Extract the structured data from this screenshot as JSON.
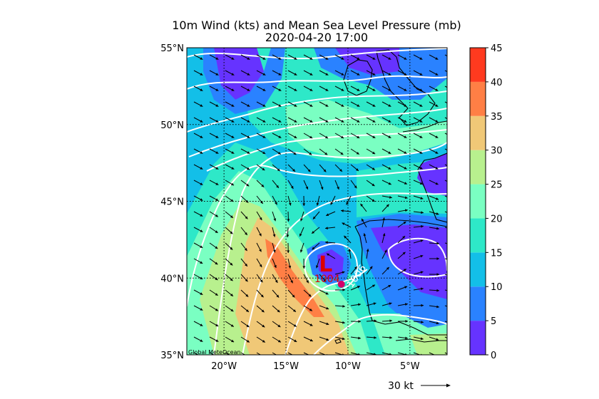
{
  "title": "10m Wind (kts) and Mean Sea Level Pressure (mb)",
  "subtitle": "2020-04-20 17:00",
  "map": {
    "lon_range": [
      -23,
      -2
    ],
    "lat_range": [
      35,
      55
    ],
    "lat_labels": [
      "55°N",
      "50°N",
      "45°N",
      "40°N",
      "35°N"
    ],
    "lat_values": [
      55,
      50,
      45,
      40,
      35
    ],
    "lon_labels": [
      "20°W",
      "15°W",
      "10°W",
      "5°W"
    ],
    "lon_values": [
      -20,
      -15,
      -10,
      -5
    ],
    "credit": "Global MeteOcean",
    "low": {
      "symbol": "L",
      "label": "1004",
      "lon": -11.8,
      "lat": 40.9
    },
    "isobar_label": {
      "text": "1006",
      "lon": -9.1,
      "lat": 40.0
    },
    "low_color": "#dd0000",
    "marker_color": "#d4006a"
  },
  "colorbar": {
    "ticks": [
      "45",
      "40",
      "35",
      "30",
      "25",
      "20",
      "15",
      "10",
      "5",
      "0"
    ],
    "levels": [
      0,
      5,
      10,
      15,
      20,
      25,
      30,
      35,
      40,
      45
    ],
    "colors": [
      "#6633ff",
      "#2a82ff",
      "#13bfe8",
      "#2ee8c8",
      "#7affc2",
      "#b8f08e",
      "#f0c877",
      "#ff7f45",
      "#ff3a1f"
    ]
  },
  "reference_vector": {
    "label": "30 kt",
    "speed_kt": 30
  }
}
